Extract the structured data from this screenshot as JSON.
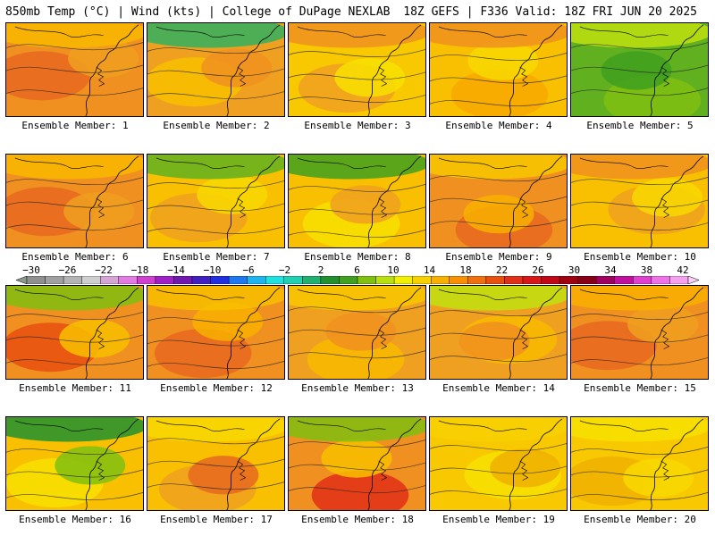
{
  "header": {
    "left": "850mb Temp (°C) | Wind (kts) | College of DuPage NEXLAB",
    "right": "18Z GEFS | F336 Valid: 18Z FRI JUN 20 2025"
  },
  "colorbar": {
    "tick_labels": [
      "−30",
      "−26",
      "−22",
      "−18",
      "−14",
      "−10",
      "−6",
      "−2",
      "2",
      "6",
      "10",
      "14",
      "18",
      "22",
      "26",
      "30",
      "34",
      "38",
      "42"
    ],
    "colors": [
      "#8a9a8a",
      "#8f8f8f",
      "#a0a0a0",
      "#b4b4b4",
      "#cfcfcf",
      "#d5a6d5",
      "#e37be3",
      "#d040d0",
      "#a020c8",
      "#7018b0",
      "#4020c0",
      "#2030e0",
      "#1e78f0",
      "#1eb4f0",
      "#20e0e0",
      "#20d0b0",
      "#20b070",
      "#209030",
      "#40a020",
      "#80c010",
      "#b8e010",
      "#f0f000",
      "#f8d000",
      "#f8b000",
      "#f89000",
      "#f07010",
      "#e85010",
      "#e03018",
      "#d81818",
      "#c00818",
      "#a00010",
      "#880018",
      "#a00060",
      "#c010a0",
      "#e040d0",
      "#f070e8",
      "#f8a0f0",
      "#f8d0f8"
    ]
  },
  "member_label_prefix": "Ensemble Member: ",
  "members": [
    {
      "id": "1",
      "label": "Ensemble Member: 1",
      "palette": [
        "#f09020",
        "#e86820",
        "#f0a020",
        "#f8b800"
      ]
    },
    {
      "id": "2",
      "label": "Ensemble Member: 2",
      "palette": [
        "#f0a020",
        "#f8c000",
        "#f09020",
        "#30b060"
      ]
    },
    {
      "id": "3",
      "label": "Ensemble Member: 3",
      "palette": [
        "#f8c800",
        "#f0a020",
        "#f8e000",
        "#f09020"
      ]
    },
    {
      "id": "4",
      "label": "Ensemble Member: 4",
      "palette": [
        "#f8c000",
        "#f8a800",
        "#f8d800",
        "#f09020"
      ]
    },
    {
      "id": "5",
      "label": "Ensemble Member: 5",
      "palette": [
        "#60b020",
        "#80c010",
        "#40a020",
        "#c0e010"
      ]
    },
    {
      "id": "6",
      "label": "Ensemble Member: 6",
      "palette": [
        "#f09020",
        "#e86820",
        "#f0a020",
        "#f8b800"
      ]
    },
    {
      "id": "7",
      "label": "Ensemble Member: 7",
      "palette": [
        "#f8c000",
        "#f0a020",
        "#f8d800",
        "#60b020"
      ]
    },
    {
      "id": "8",
      "label": "Ensemble Member: 8",
      "palette": [
        "#f8c000",
        "#f8e000",
        "#f0a020",
        "#40a020"
      ]
    },
    {
      "id": "9",
      "label": "Ensemble Member: 9",
      "palette": [
        "#f09020",
        "#e86820",
        "#f8b000",
        "#f8c800"
      ]
    },
    {
      "id": "10",
      "label": "Ensemble Member: 10",
      "palette": [
        "#f8c000",
        "#f0a020",
        "#f8d800",
        "#f09020"
      ]
    },
    {
      "id": "11",
      "label": "Ensemble Member: 11",
      "palette": [
        "#f09020",
        "#e85010",
        "#f8c000",
        "#80c010"
      ]
    },
    {
      "id": "12",
      "label": "Ensemble Member: 12",
      "palette": [
        "#f09020",
        "#e86820",
        "#f8b000",
        "#f8c000"
      ]
    },
    {
      "id": "13",
      "label": "Ensemble Member: 13",
      "palette": [
        "#f0a020",
        "#f8b800",
        "#f09020",
        "#f8c800"
      ]
    },
    {
      "id": "14",
      "label": "Ensemble Member: 14",
      "palette": [
        "#f0a020",
        "#f8b800",
        "#f09020",
        "#c0e010"
      ]
    },
    {
      "id": "15",
      "label": "Ensemble Member: 15",
      "palette": [
        "#f09020",
        "#e86820",
        "#f0a020",
        "#f8b000"
      ]
    },
    {
      "id": "16",
      "label": "Ensemble Member: 16",
      "palette": [
        "#f8c000",
        "#f8e000",
        "#80c010",
        "#209030"
      ]
    },
    {
      "id": "17",
      "label": "Ensemble Member: 17",
      "palette": [
        "#f8c000",
        "#f0a020",
        "#e86820",
        "#f8d800"
      ]
    },
    {
      "id": "18",
      "label": "Ensemble Member: 18",
      "palette": [
        "#f09020",
        "#e03018",
        "#f8c000",
        "#80c010"
      ]
    },
    {
      "id": "19",
      "label": "Ensemble Member: 19",
      "palette": [
        "#f8c800",
        "#f8e000",
        "#f0b000",
        "#f8d000"
      ]
    },
    {
      "id": "20",
      "label": "Ensemble Member: 20",
      "palette": [
        "#f8c800",
        "#f0b000",
        "#f8d800",
        "#f8e000"
      ]
    }
  ]
}
